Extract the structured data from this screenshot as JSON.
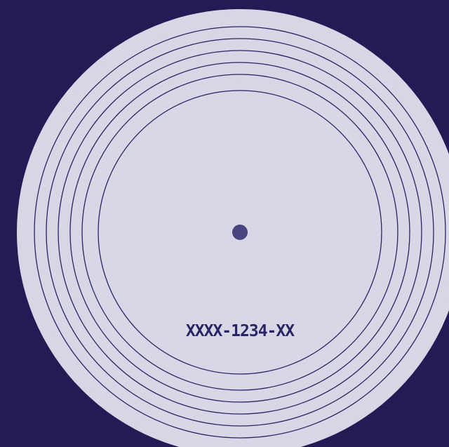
{
  "record": {
    "catalog_number": "XXXX-1234-XX",
    "groove_ring_count": 6
  },
  "colors": {
    "background": "#221b56",
    "vinyl_surface": "#d9d8e6",
    "vinyl_texture": "#b9b7cf",
    "groove_line": "#2a2466",
    "spindle_hole": "#4a4580",
    "label_text": "#2a2466"
  }
}
